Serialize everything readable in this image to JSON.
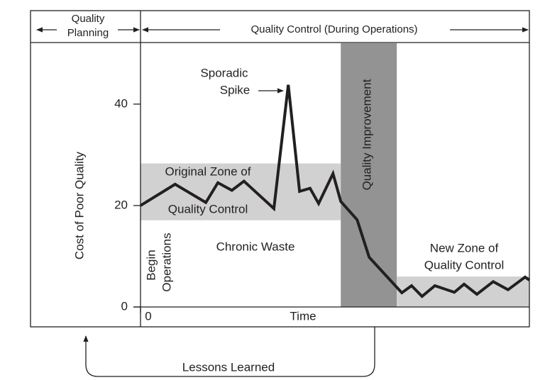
{
  "chart_data": {
    "type": "line",
    "header": {
      "planning": [
        "Quality",
        "Planning"
      ],
      "control": "Quality Control (During Operations)"
    },
    "ylabel": "Cost of Poor Quality",
    "xlabel": "Time",
    "xlim": [
      0,
      100
    ],
    "xticks": [
      0
    ],
    "ylim": [
      0,
      52
    ],
    "yticks": [
      0,
      20,
      40
    ],
    "x": [
      0,
      8.9,
      16.8,
      19.9,
      23.5,
      26.6,
      34.3,
      38,
      40.9,
      43.6,
      45.8,
      49.5,
      51.5,
      55.7,
      58.8,
      67.2,
      69.7,
      72.4,
      75.7,
      80.7,
      83.2,
      86.5,
      90.7,
      94.5,
      98.9,
      100
    ],
    "values": [
      20,
      24.2,
      20.6,
      24.5,
      23,
      24.8,
      19.4,
      43.8,
      22.8,
      23.4,
      20.4,
      26.3,
      20.8,
      17.2,
      9.8,
      2.8,
      4.2,
      2.1,
      4.2,
      2.9,
      4.5,
      2.5,
      5,
      3.4,
      5.9,
      5.3
    ],
    "color": "#231f20",
    "zones": [
      {
        "label": [
          "Original Zone of",
          "Quality Control"
        ],
        "x": [
          0,
          51.5
        ],
        "y": [
          17.1,
          28.3
        ],
        "color": "#d1d1d1"
      },
      {
        "label": [
          "Quality Improvement"
        ],
        "x": [
          51.5,
          65.9
        ],
        "y": [
          0,
          52
        ],
        "color": "#939393"
      },
      {
        "label": [
          "New Zone of",
          "Quality Control"
        ],
        "x": [
          65.9,
          100
        ],
        "y": [
          0,
          6
        ],
        "color": "#d1d1d1"
      }
    ],
    "annotations": {
      "sporadic_spike": [
        "Sporadic",
        "Spike"
      ],
      "begin_operations": [
        "Begin",
        "Operations"
      ],
      "chronic_waste": "Chronic Waste",
      "lessons_learned": "Lessons Learned"
    }
  }
}
